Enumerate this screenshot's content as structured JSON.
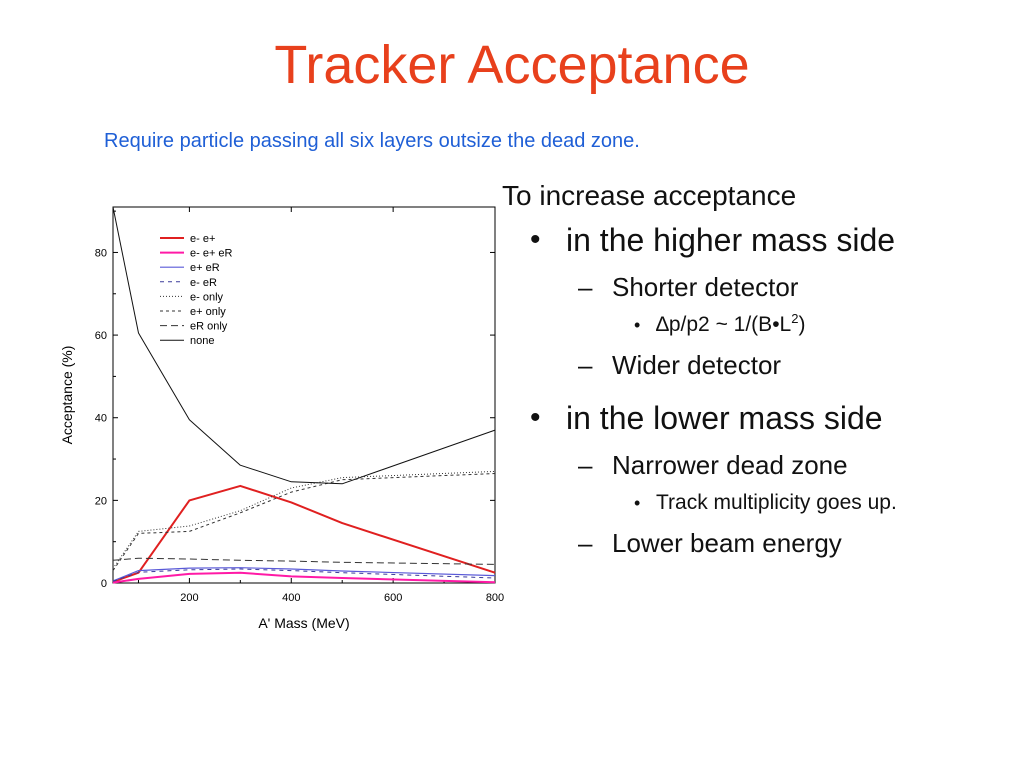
{
  "slide": {
    "title": "Tracker Acceptance",
    "subtitle": "Require particle passing all six layers outsize the dead zone."
  },
  "notes": {
    "lead": "To increase acceptance",
    "bullet_mark": "•",
    "dash_mark": "–",
    "higher": {
      "label": "in the higher mass side",
      "shorter": "Shorter detector",
      "formula": {
        "delta": "∆",
        "a": "p/p2 ~ 1/(B",
        "dot": "•",
        "b": "L",
        "sup": "2",
        "c": ")"
      },
      "wider": "Wider detector"
    },
    "lower": {
      "label": "in the lower mass side",
      "narrower": "Narrower dead zone",
      "multiplicity": "Track multiplicity goes up.",
      "beam": "Lower beam energy"
    }
  },
  "chart_data": {
    "type": "line",
    "title": "",
    "xlabel": "A' Mass (MeV)",
    "ylabel": "Acceptance (%)",
    "xlim": [
      50,
      800
    ],
    "ylim": [
      0,
      91
    ],
    "xticks": [
      200,
      400,
      600,
      800
    ],
    "yticks": [
      0,
      20,
      40,
      60,
      80
    ],
    "grid": false,
    "legend_position": "top-left",
    "x": [
      50,
      100,
      200,
      300,
      400,
      500,
      800
    ],
    "series": [
      {
        "name": "e- e+",
        "color": "#e02020",
        "dash": "solid",
        "width": 2,
        "values": [
          0.3,
          2.5,
          20,
          23.5,
          19.5,
          14.5,
          2.5
        ]
      },
      {
        "name": "e- e+ eR",
        "color": "#ff1aa6",
        "dash": "solid",
        "width": 2,
        "values": [
          0.1,
          1.0,
          2.2,
          2.5,
          1.6,
          1.2,
          0.2
        ]
      },
      {
        "name": "e+ eR",
        "color": "#5a5ad8",
        "dash": "solid",
        "width": 1.2,
        "values": [
          0.5,
          3.0,
          3.6,
          3.7,
          3.4,
          2.9,
          1.8
        ]
      },
      {
        "name": "e- eR",
        "color": "#3a3a9a",
        "dash": "4,4",
        "width": 1,
        "values": [
          0.4,
          2.6,
          3.2,
          3.4,
          3.0,
          2.5,
          1.2
        ]
      },
      {
        "name": "e- only",
        "color": "#333333",
        "dash": "1,2",
        "width": 1,
        "values": [
          3.5,
          12.5,
          13.8,
          17.5,
          23.0,
          25.5,
          27.0
        ]
      },
      {
        "name": "e+ only",
        "color": "#333333",
        "dash": "3,3",
        "width": 1,
        "values": [
          3.0,
          12.0,
          12.5,
          17.0,
          22.0,
          25.0,
          26.5
        ]
      },
      {
        "name": "eR only",
        "color": "#333333",
        "dash": "7,4",
        "width": 1,
        "values": [
          5.5,
          6.0,
          5.8,
          5.5,
          5.3,
          5.0,
          4.5
        ]
      },
      {
        "name": "none",
        "color": "#111111",
        "dash": "solid",
        "width": 1,
        "values": [
          91,
          60.5,
          39.5,
          28.5,
          24.5,
          24.0,
          37.0
        ]
      }
    ]
  }
}
